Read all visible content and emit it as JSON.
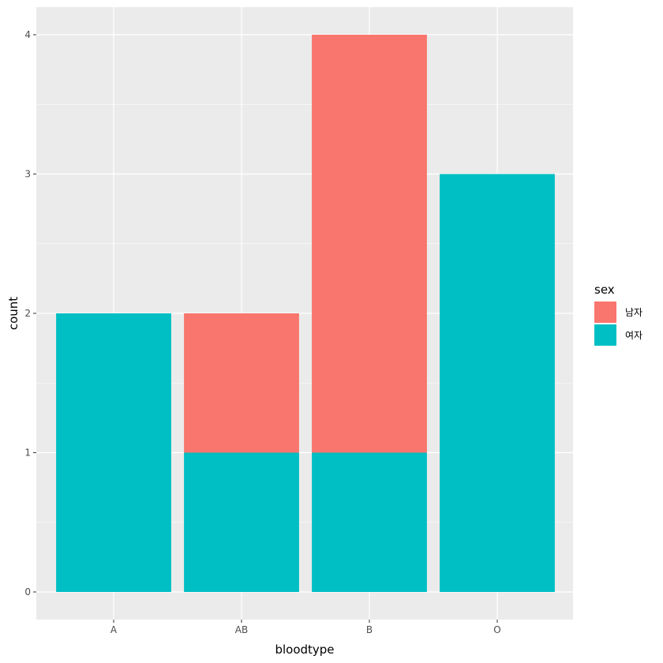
{
  "chart_data": {
    "type": "bar",
    "stacked": true,
    "categories": [
      "A",
      "AB",
      "B",
      "O"
    ],
    "series": [
      {
        "name": "남자",
        "color": "#F8766D",
        "values": [
          0,
          1,
          3,
          0
        ]
      },
      {
        "name": "여자",
        "color": "#00BFC4",
        "values": [
          2,
          1,
          1,
          3
        ]
      }
    ],
    "stack_order": [
      "여자",
      "남자"
    ],
    "xlabel": "bloodtype",
    "ylabel": "count",
    "ylim": [
      0,
      4
    ],
    "yticks": [
      0,
      1,
      2,
      3,
      4
    ],
    "grid": true,
    "legend": {
      "title": "sex",
      "placement": "right"
    },
    "panel_background": "#EBEBEB",
    "grid_color": "#FFFFFF"
  }
}
